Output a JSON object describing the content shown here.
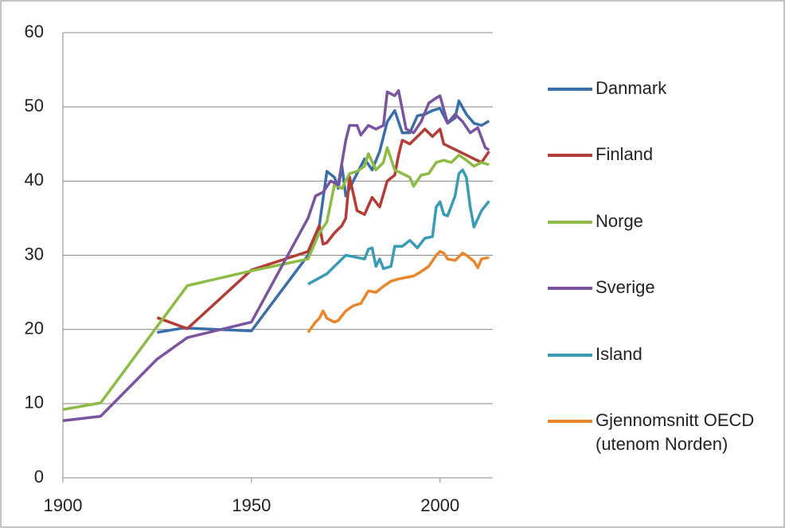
{
  "chart_data": {
    "type": "line",
    "xlim": [
      1900,
      2014
    ],
    "xticks": [
      1900,
      1950,
      2000
    ],
    "ylim": [
      0,
      60
    ],
    "yticks": [
      0,
      10,
      20,
      30,
      40,
      50,
      60
    ],
    "grid": true,
    "legend": "right",
    "series": [
      {
        "name": "Danmark",
        "color": "#3b6ea8",
        "x": [
          1925,
          1932,
          1950,
          1965,
          1968,
          1970,
          1972,
          1973,
          1974,
          1975,
          1977,
          1980,
          1982,
          1984,
          1986,
          1988,
          1990,
          1992,
          1994,
          1996,
          1998,
          2000,
          2002,
          2004,
          2005,
          2007,
          2009,
          2011,
          2013
        ],
        "values": [
          19.6,
          20.2,
          19.8,
          30,
          34,
          41.3,
          40.5,
          39,
          42,
          38,
          40,
          43,
          41.5,
          44,
          48,
          49.5,
          46.5,
          46.5,
          48.8,
          49,
          49.5,
          49.8,
          47.8,
          48.5,
          50.8,
          49,
          47.8,
          47.5,
          48.1
        ]
      },
      {
        "name": "Finland",
        "color": "#b23c36",
        "x": [
          1925,
          1933,
          1950,
          1965,
          1968,
          1969,
          1970,
          1972,
          1974,
          1975,
          1976,
          1978,
          1980,
          1982,
          1984,
          1986,
          1988,
          1989,
          1990,
          1992,
          1994,
          1996,
          1998,
          2000,
          2001,
          2003,
          2005,
          2007,
          2009,
          2011,
          2013
        ],
        "values": [
          21.6,
          20.1,
          28,
          30.5,
          34,
          31.5,
          31.7,
          33,
          34,
          35,
          40.6,
          36,
          35.5,
          37.8,
          36.5,
          40,
          40.8,
          43.5,
          45.5,
          45,
          46,
          47,
          46,
          47,
          45,
          44.5,
          44,
          43.5,
          43,
          42.5,
          44
        ]
      },
      {
        "name": "Norge",
        "color": "#8dbb45",
        "x": [
          1900,
          1910,
          1933,
          1950,
          1965,
          1968,
          1970,
          1972,
          1974,
          1976,
          1978,
          1980,
          1981,
          1983,
          1985,
          1986,
          1988,
          1990,
          1992,
          1993,
          1995,
          1997,
          1999,
          2001,
          2003,
          2005,
          2007,
          2009,
          2011,
          2013
        ],
        "values": [
          9.2,
          10.1,
          25.9,
          27.9,
          29.5,
          33,
          34.5,
          39.5,
          39,
          41,
          41.3,
          42,
          43.7,
          41.5,
          42.5,
          44.5,
          41.5,
          41,
          40.5,
          39.3,
          40.8,
          41,
          42.5,
          42.8,
          42.5,
          43.5,
          42.8,
          42,
          42.5,
          42.2
        ]
      },
      {
        "name": "Sverige",
        "color": "#7a549f",
        "x": [
          1900,
          1910,
          1925,
          1933,
          1950,
          1965,
          1967,
          1969,
          1971,
          1973,
          1975,
          1976,
          1978,
          1979,
          1981,
          1983,
          1985,
          1986,
          1988,
          1989,
          1991,
          1993,
          1995,
          1997,
          1999,
          2000,
          2002,
          2004,
          2006,
          2008,
          2010,
          2012,
          2013
        ],
        "values": [
          7.7,
          8.3,
          16,
          18.9,
          21,
          35,
          38,
          38.5,
          40,
          39.5,
          45.5,
          47.5,
          47.5,
          46.2,
          47.5,
          47,
          47.5,
          52,
          51.5,
          52.2,
          47,
          46.5,
          48,
          50.5,
          51.2,
          51.5,
          47.8,
          49,
          48,
          46.5,
          47.2,
          44.5,
          44.2
        ]
      },
      {
        "name": "Island",
        "color": "#3a9bb5",
        "x": [
          1965,
          1970,
          1975,
          1978,
          1980,
          1981,
          1982,
          1983,
          1984,
          1985,
          1987,
          1988,
          1990,
          1992,
          1994,
          1996,
          1998,
          1999,
          2000,
          2001,
          2002,
          2004,
          2005,
          2006,
          2007,
          2008,
          2009,
          2011,
          2013
        ],
        "values": [
          26.1,
          27.5,
          30,
          29.7,
          29.5,
          30.8,
          31,
          28.5,
          29.5,
          28.2,
          28.5,
          31.2,
          31.2,
          32,
          31,
          32.3,
          32.5,
          36.5,
          37.2,
          35.5,
          35.3,
          38,
          41,
          41.5,
          40.5,
          36.5,
          33.8,
          36,
          37.3
        ]
      },
      {
        "name": "Gjennomsnitt OECD (utenom Norden)",
        "color": "#e8862c",
        "x": [
          1965,
          1967,
          1968,
          1969,
          1970,
          1972,
          1973,
          1975,
          1977,
          1979,
          1981,
          1983,
          1985,
          1987,
          1989,
          1991,
          1993,
          1995,
          1997,
          1999,
          2000,
          2001,
          2002,
          2004,
          2006,
          2007,
          2009,
          2010,
          2011,
          2013
        ],
        "values": [
          19.6,
          21,
          21.5,
          22.5,
          21.5,
          21,
          21.2,
          22.5,
          23.2,
          23.5,
          25.2,
          25,
          25.8,
          26.5,
          26.8,
          27,
          27.2,
          27.8,
          28.5,
          30,
          30.5,
          30.3,
          29.5,
          29.3,
          30.3,
          30,
          29.2,
          28.3,
          29.5,
          29.7
        ]
      }
    ]
  }
}
